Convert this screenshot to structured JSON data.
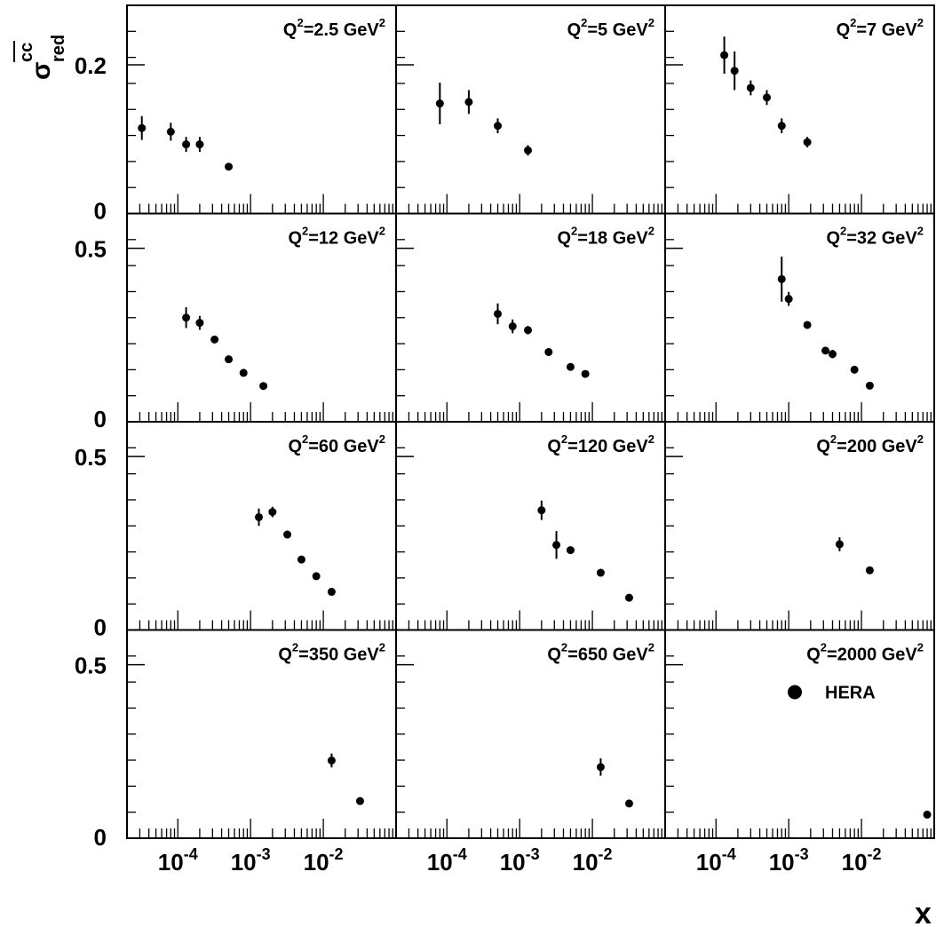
{
  "chart_data": {
    "type": "scatter",
    "x_scale": "log",
    "xlim": [
      2e-05,
      0.1
    ],
    "xlabel": "x",
    "ylabel": {
      "main": "σ",
      "sup": "cc",
      "sub": "red"
    },
    "legend": {
      "label": "HERA",
      "placement": "bottom-right panel"
    },
    "grid": false,
    "x_tick_labels": [
      {
        "base": "10",
        "exp": "-4"
      },
      {
        "base": "10",
        "exp": "-3"
      },
      {
        "base": "10",
        "exp": "-2"
      }
    ],
    "rows": [
      {
        "ylim": [
          0,
          0.28
        ],
        "tick_labels": [
          "0",
          "0.2"
        ],
        "tick_values": [
          0,
          0.2
        ]
      },
      {
        "ylim": [
          0,
          0.6
        ],
        "tick_labels": [
          "0",
          "0.5"
        ],
        "tick_values": [
          0,
          0.5
        ]
      },
      {
        "ylim": [
          0,
          0.6
        ],
        "tick_labels": [
          "0",
          "0.5"
        ],
        "tick_values": [
          0,
          0.5
        ]
      },
      {
        "ylim": [
          0,
          0.6
        ],
        "tick_labels": [
          "0",
          "0.5"
        ],
        "tick_values": [
          0,
          0.5
        ]
      }
    ],
    "panels": [
      {
        "q2": "2.5",
        "points": [
          {
            "x": 3.2e-05,
            "y": 0.115,
            "err": 0.016
          },
          {
            "x": 8e-05,
            "y": 0.11,
            "err": 0.012
          },
          {
            "x": 0.00013,
            "y": 0.093,
            "err": 0.01
          },
          {
            "x": 0.0002,
            "y": 0.093,
            "err": 0.01
          },
          {
            "x": 0.0005,
            "y": 0.063,
            "err": 0.005
          }
        ]
      },
      {
        "q2": "5",
        "points": [
          {
            "x": 8e-05,
            "y": 0.148,
            "err": 0.028
          },
          {
            "x": 0.0002,
            "y": 0.15,
            "err": 0.016
          },
          {
            "x": 0.0005,
            "y": 0.118,
            "err": 0.01
          },
          {
            "x": 0.0013,
            "y": 0.085,
            "err": 0.007
          }
        ]
      },
      {
        "q2": "7",
        "points": [
          {
            "x": 0.00013,
            "y": 0.213,
            "err": 0.025
          },
          {
            "x": 0.00018,
            "y": 0.192,
            "err": 0.026
          },
          {
            "x": 0.0003,
            "y": 0.169,
            "err": 0.01
          },
          {
            "x": 0.0005,
            "y": 0.156,
            "err": 0.01
          },
          {
            "x": 0.0008,
            "y": 0.118,
            "err": 0.01
          },
          {
            "x": 0.0018,
            "y": 0.096,
            "err": 0.007
          }
        ]
      },
      {
        "q2": "12",
        "points": [
          {
            "x": 0.00013,
            "y": 0.3,
            "err": 0.03
          },
          {
            "x": 0.0002,
            "y": 0.285,
            "err": 0.02
          },
          {
            "x": 0.00032,
            "y": 0.237,
            "err": 0.01
          },
          {
            "x": 0.0005,
            "y": 0.18,
            "err": 0.008
          },
          {
            "x": 0.0008,
            "y": 0.141,
            "err": 0.007
          },
          {
            "x": 0.0015,
            "y": 0.103,
            "err": 0.006
          }
        ]
      },
      {
        "q2": "18",
        "points": [
          {
            "x": 0.0005,
            "y": 0.311,
            "err": 0.03
          },
          {
            "x": 0.0008,
            "y": 0.275,
            "err": 0.02
          },
          {
            "x": 0.0013,
            "y": 0.264,
            "err": 0.012
          },
          {
            "x": 0.0025,
            "y": 0.201,
            "err": 0.008
          },
          {
            "x": 0.005,
            "y": 0.158,
            "err": 0.007
          },
          {
            "x": 0.008,
            "y": 0.138,
            "err": 0.006
          }
        ]
      },
      {
        "q2": "32",
        "points": [
          {
            "x": 0.0008,
            "y": 0.411,
            "err": 0.065
          },
          {
            "x": 0.001,
            "y": 0.354,
            "err": 0.02
          },
          {
            "x": 0.0018,
            "y": 0.279,
            "err": 0.01
          },
          {
            "x": 0.0032,
            "y": 0.205,
            "err": 0.008
          },
          {
            "x": 0.004,
            "y": 0.195,
            "err": 0.012
          },
          {
            "x": 0.008,
            "y": 0.15,
            "err": 0.008
          },
          {
            "x": 0.013,
            "y": 0.104,
            "err": 0.006
          }
        ]
      },
      {
        "q2": "60",
        "points": [
          {
            "x": 0.0013,
            "y": 0.325,
            "err": 0.025
          },
          {
            "x": 0.002,
            "y": 0.34,
            "err": 0.015
          },
          {
            "x": 0.0032,
            "y": 0.275,
            "err": 0.01
          },
          {
            "x": 0.005,
            "y": 0.203,
            "err": 0.008
          },
          {
            "x": 0.008,
            "y": 0.155,
            "err": 0.01
          },
          {
            "x": 0.013,
            "y": 0.11,
            "err": 0.006
          }
        ]
      },
      {
        "q2": "120",
        "points": [
          {
            "x": 0.002,
            "y": 0.345,
            "err": 0.028
          },
          {
            "x": 0.0032,
            "y": 0.245,
            "err": 0.04
          },
          {
            "x": 0.005,
            "y": 0.23,
            "err": 0.01
          },
          {
            "x": 0.013,
            "y": 0.165,
            "err": 0.006
          },
          {
            "x": 0.032,
            "y": 0.093,
            "err": 0.005
          }
        ]
      },
      {
        "q2": "200",
        "points": [
          {
            "x": 0.005,
            "y": 0.247,
            "err": 0.02
          },
          {
            "x": 0.013,
            "y": 0.172,
            "err": 0.007
          }
        ]
      },
      {
        "q2": "350",
        "points": [
          {
            "x": 0.013,
            "y": 0.224,
            "err": 0.02
          },
          {
            "x": 0.032,
            "y": 0.107,
            "err": 0.005
          }
        ]
      },
      {
        "q2": "650",
        "points": [
          {
            "x": 0.013,
            "y": 0.205,
            "err": 0.025
          },
          {
            "x": 0.032,
            "y": 0.1,
            "err": 0.008
          }
        ]
      },
      {
        "q2": "2000",
        "points": [
          {
            "x": 0.08,
            "y": 0.068,
            "err": 0.01
          }
        ]
      }
    ]
  }
}
